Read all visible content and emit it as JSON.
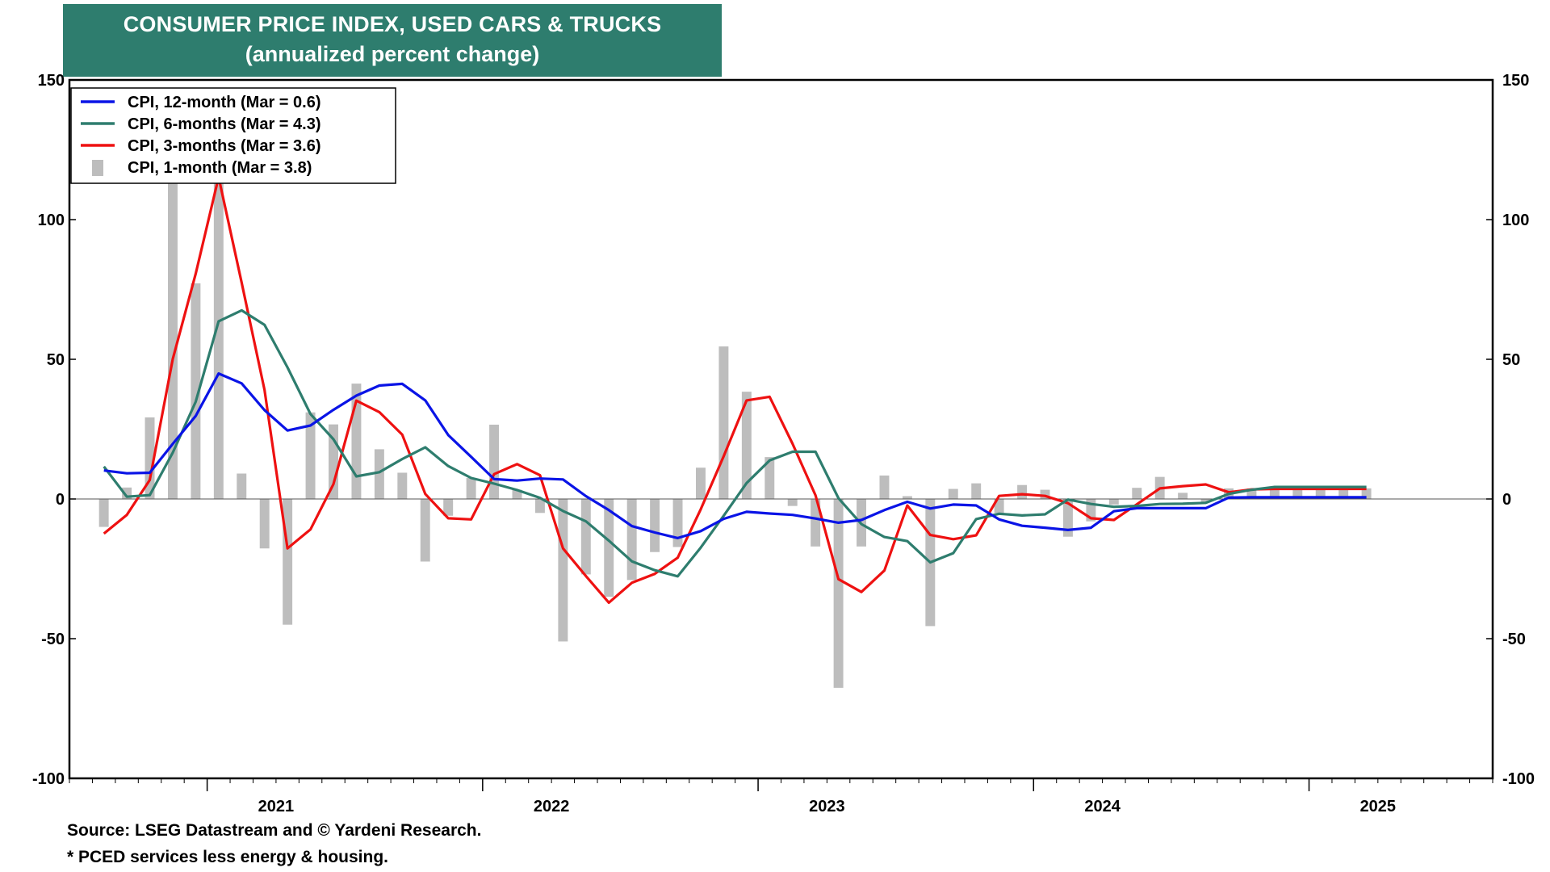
{
  "title_line1": "CONSUMER PRICE INDEX, USED CARS & TRUCKS",
  "title_line2": "(annualized percent change)",
  "footnotes": {
    "source": "Source: LSEG Datastream and © Yardeni Research.",
    "note": "* PCED services less energy & housing."
  },
  "colors": {
    "cpi12": "#0a14e6",
    "cpi6": "#2e7d6e",
    "cpi3": "#ee1111",
    "cpi1": "#bdbdbd",
    "title_bg": "#2e7d6e"
  },
  "chart_data": {
    "type": "line",
    "x_axis": {
      "start": "2020-07",
      "end": "2025-09",
      "labels": [
        "2021",
        "2022",
        "2023",
        "2024",
        "2025"
      ]
    },
    "y_axis": {
      "ylim": [
        -100,
        150
      ],
      "ticks": [
        150,
        100,
        50,
        0,
        -50,
        -100
      ],
      "dual_axis": true
    },
    "grid": false,
    "legend_position": "top-left",
    "months": [
      "2020-08",
      "2020-09",
      "2020-10",
      "2020-11",
      "2020-12",
      "2021-01",
      "2021-02",
      "2021-03",
      "2021-04",
      "2021-05",
      "2021-06",
      "2021-07",
      "2021-08",
      "2021-09",
      "2021-10",
      "2021-11",
      "2021-12",
      "2022-01",
      "2022-02",
      "2022-03",
      "2022-04",
      "2022-05",
      "2022-06",
      "2022-07",
      "2022-08",
      "2022-09",
      "2022-10",
      "2022-11",
      "2022-12",
      "2023-01",
      "2023-02",
      "2023-03",
      "2023-04",
      "2023-05",
      "2023-06",
      "2023-07",
      "2023-08",
      "2023-09",
      "2023-10",
      "2023-11",
      "2023-12",
      "2024-01",
      "2024-02",
      "2024-03",
      "2024-04",
      "2024-05",
      "2024-06",
      "2024-07",
      "2024-08",
      "2024-09",
      "2024-10",
      "2024-11",
      "2024-12",
      "2025-01",
      "2025-02",
      "2025-03"
    ],
    "series": [
      {
        "name": "CPI, 12-month (Mar = 0.6)",
        "style": "line",
        "color_key": "cpi12",
        "values": [
          10.2,
          9.2,
          9.4,
          19.7,
          29.7,
          44.9,
          41.4,
          31.8,
          24.5,
          26.3,
          31.9,
          37,
          40.6,
          41.2,
          35.3,
          22.9,
          15.1,
          7.1,
          6.6,
          7.3,
          7,
          1,
          -4,
          -9.7,
          -12,
          -14,
          -11.5,
          -7.1,
          -4.6,
          -5.2,
          -5.7,
          -7,
          -8.5,
          -7.5,
          -4,
          -1,
          -3.4,
          -2,
          -2.3,
          -7.3,
          -9.6,
          -10.3,
          -11.1,
          -10.3,
          -4.4,
          -3.3,
          -3.3,
          -3.3,
          -3.3,
          0.5,
          0.6,
          0.6,
          0.6,
          0.6,
          0.6,
          0.6
        ]
      },
      {
        "name": "CPI, 6-months (Mar = 4.3)",
        "style": "line",
        "color_key": "cpi6",
        "values": [
          11.6,
          0.8,
          1.4,
          16.6,
          34.8,
          63.6,
          67.5,
          62.3,
          47.1,
          30.4,
          21.4,
          8.1,
          9.6,
          14.3,
          18.5,
          11.8,
          7.5,
          5.5,
          3.2,
          0.4,
          -4.3,
          -8,
          -14.9,
          -22.3,
          -25.5,
          -27.7,
          -17.4,
          -6,
          5.7,
          13.8,
          16.9,
          16.9,
          0.3,
          -9,
          -13.6,
          -15.1,
          -22.7,
          -19.4,
          -7.2,
          -5.3,
          -5.9,
          -5.5,
          -0.2,
          -1.8,
          -2.8,
          -2.5,
          -1.8,
          -1.7,
          -1.4,
          1.8,
          3.3,
          4.3,
          4.3,
          4.3,
          4.3,
          4.3
        ]
      },
      {
        "name": "CPI, 3-months (Mar = 3.6)",
        "style": "line",
        "color_key": "cpi3",
        "values": [
          -12.4,
          -5.7,
          6.8,
          50.1,
          80.6,
          115.2,
          77.5,
          39,
          -17.7,
          -10.9,
          5.3,
          35.2,
          31.1,
          23,
          1.8,
          -6.9,
          -7.3,
          8.9,
          12.5,
          8.5,
          -17.7,
          -27.6,
          -37.1,
          -30,
          -26.8,
          -21,
          -3.7,
          15.3,
          35.3,
          36.6,
          19.8,
          1.3,
          -28.7,
          -33.3,
          -25.6,
          -2.3,
          -12.9,
          -14.4,
          -13,
          1.1,
          1.7,
          1.1,
          -1.5,
          -6.9,
          -7.5,
          -1.9,
          3.8,
          4.6,
          5.2,
          2.4,
          3.4,
          3.6,
          3.6,
          3.6,
          3.6,
          3.6
        ]
      },
      {
        "name": "CPI, 1-month (Mar = 3.8)",
        "style": "bar",
        "color_key": "cpi1",
        "values": [
          -10,
          4.1,
          29.2,
          121.3,
          77.2,
          114.6,
          9.1,
          -17.7,
          -45,
          31,
          26.7,
          41.3,
          17.8,
          9.4,
          -22.4,
          -6,
          7.5,
          26.6,
          3.3,
          -5,
          -51,
          -27,
          -35,
          -29,
          -19,
          -17.2,
          11.2,
          54.6,
          38.4,
          15,
          -2.5,
          -17,
          -67.6,
          -17,
          8.4,
          1,
          -45.5,
          3.6,
          5.6,
          -5,
          5,
          3.3,
          -13.5,
          -8,
          -2,
          4,
          7.9,
          2.2,
          -1,
          3.8,
          3.8,
          3.8,
          3.8,
          3.8,
          3.8,
          3.8
        ]
      }
    ]
  },
  "legend_items": [
    {
      "label": "CPI, 12-month (Mar = 0.6)",
      "kind": "line",
      "color_key": "cpi12"
    },
    {
      "label": "CPI, 6-months (Mar = 4.3)",
      "kind": "line",
      "color_key": "cpi6"
    },
    {
      "label": "CPI, 3-months (Mar = 3.6)",
      "kind": "line",
      "color_key": "cpi3"
    },
    {
      "label": "CPI, 1-month (Mar = 3.8)",
      "kind": "bar",
      "color_key": "cpi1"
    }
  ]
}
